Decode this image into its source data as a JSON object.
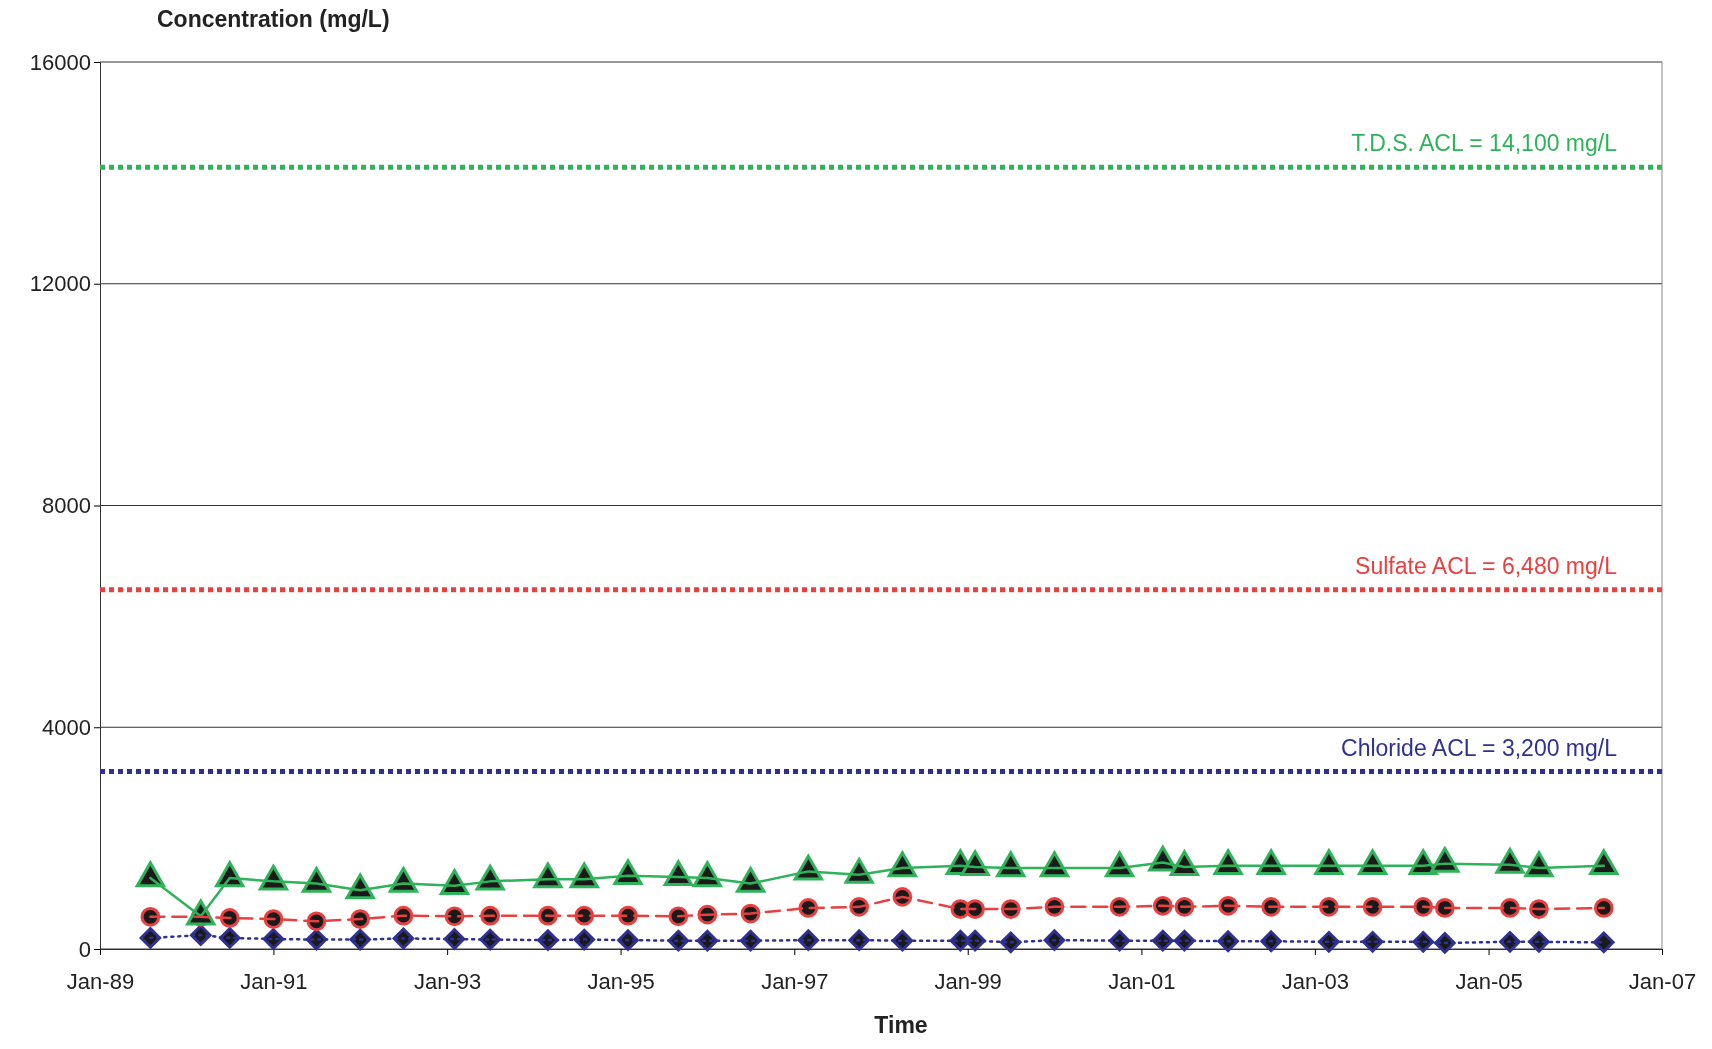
{
  "chart_data": {
    "type": "line",
    "ylabel": "Concentration (mg/L)",
    "xlabel": "Time",
    "x": [
      "1989-08",
      "1990-03",
      "1990-07",
      "1991-01",
      "1991-07",
      "1992-01",
      "1992-07",
      "1993-02",
      "1993-07",
      "1994-03",
      "1994-08",
      "1995-02",
      "1995-09",
      "1996-01",
      "1996-07",
      "1997-03",
      "1997-10",
      "1998-04",
      "1998-12",
      "1999-02",
      "1999-07",
      "2000-01",
      "2000-10",
      "2001-04",
      "2001-07",
      "2002-01",
      "2002-07",
      "2003-03",
      "2003-09",
      "2004-04",
      "2004-07",
      "2005-04",
      "2005-08",
      "2006-05"
    ],
    "series": [
      {
        "color": "#2fb35a",
        "marker": "triangle",
        "line_style": "solid",
        "values": [
          1280,
          590,
          1280,
          1220,
          1180,
          1060,
          1180,
          1140,
          1220,
          1260,
          1260,
          1320,
          1300,
          1280,
          1180,
          1400,
          1340,
          1460,
          1500,
          1480,
          1460,
          1460,
          1460,
          1560,
          1480,
          1500,
          1500,
          1500,
          1500,
          1500,
          1540,
          1520,
          1460,
          1500
        ]
      },
      {
        "color": "#e84040",
        "marker": "circle",
        "line_style": "dashed",
        "values": [
          580,
          580,
          560,
          540,
          500,
          540,
          600,
          590,
          600,
          600,
          600,
          600,
          590,
          620,
          640,
          740,
          760,
          940,
          720,
          720,
          720,
          760,
          760,
          780,
          760,
          780,
          760,
          760,
          760,
          760,
          740,
          740,
          720,
          740
        ]
      },
      {
        "color": "#2e3192",
        "marker": "diamond",
        "line_style": "dotted",
        "values": [
          200,
          250,
          200,
          180,
          170,
          170,
          190,
          180,
          170,
          160,
          170,
          160,
          150,
          150,
          150,
          160,
          160,
          150,
          150,
          150,
          120,
          160,
          150,
          150,
          150,
          140,
          140,
          130,
          130,
          130,
          110,
          130,
          130,
          120
        ]
      }
    ],
    "xlim": [
      "1989-01",
      "2007-01"
    ],
    "xticks": [
      {
        "value": "1989-01",
        "label": "Jan-89"
      },
      {
        "value": "1991-01",
        "label": "Jan-91"
      },
      {
        "value": "1993-01",
        "label": "Jan-93"
      },
      {
        "value": "1995-01",
        "label": "Jan-95"
      },
      {
        "value": "1997-01",
        "label": "Jan-97"
      },
      {
        "value": "1999-01",
        "label": "Jan-99"
      },
      {
        "value": "2001-01",
        "label": "Jan-01"
      },
      {
        "value": "2003-01",
        "label": "Jan-03"
      },
      {
        "value": "2005-01",
        "label": "Jan-05"
      },
      {
        "value": "2007-01",
        "label": "Jan-07"
      }
    ],
    "ylim": [
      0,
      16000
    ],
    "yticks": [
      0,
      4000,
      8000,
      12000,
      16000
    ],
    "grid": "y",
    "ref_lines": [
      {
        "axis": "y",
        "value": 14100,
        "label": "T.D.S.  ACL = 14,100 mg/L",
        "color": "#2fb35a",
        "line_style": "dotted"
      },
      {
        "axis": "y",
        "value": 6480,
        "label": "Sulfate ACL = 6,480 mg/L",
        "color": "#e84040",
        "line_style": "dotted"
      },
      {
        "axis": "y",
        "value": 3200,
        "label": "Chloride ACL = 3,200 mg/L",
        "color": "#2e3192",
        "line_style": "dotted"
      }
    ]
  }
}
